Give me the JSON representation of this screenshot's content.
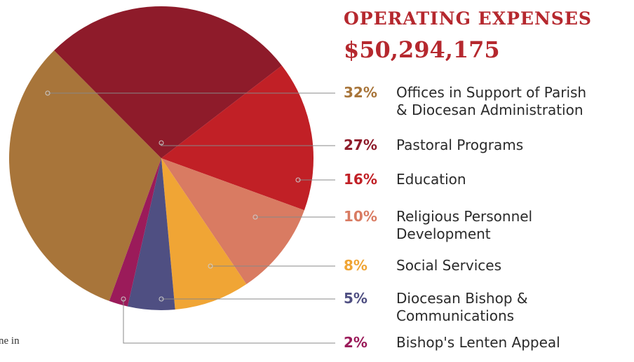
{
  "chart_data": {
    "type": "pie",
    "title": "OPERATING EXPENSES",
    "subtitle": "$50,294,175",
    "footnote": "ne in",
    "categories": [
      "Offices in Support of Parish\n& Diocesan Administration",
      "Pastoral Programs",
      "Education",
      "Religious Personnel\nDevelopment",
      "Social Services",
      "Diocesan Bishop &\nCommunications",
      "Bishop's Lenten Appeal"
    ],
    "values": [
      32,
      27,
      16,
      10,
      8,
      5,
      2
    ],
    "value_labels": [
      "32%",
      "27%",
      "16%",
      "10%",
      "8%",
      "5%",
      "2%"
    ],
    "colors": [
      "#a8753a",
      "#8e1b2a",
      "#c12026",
      "#d97b62",
      "#f0a535",
      "#4f4f82",
      "#9b1b5a"
    ]
  }
}
